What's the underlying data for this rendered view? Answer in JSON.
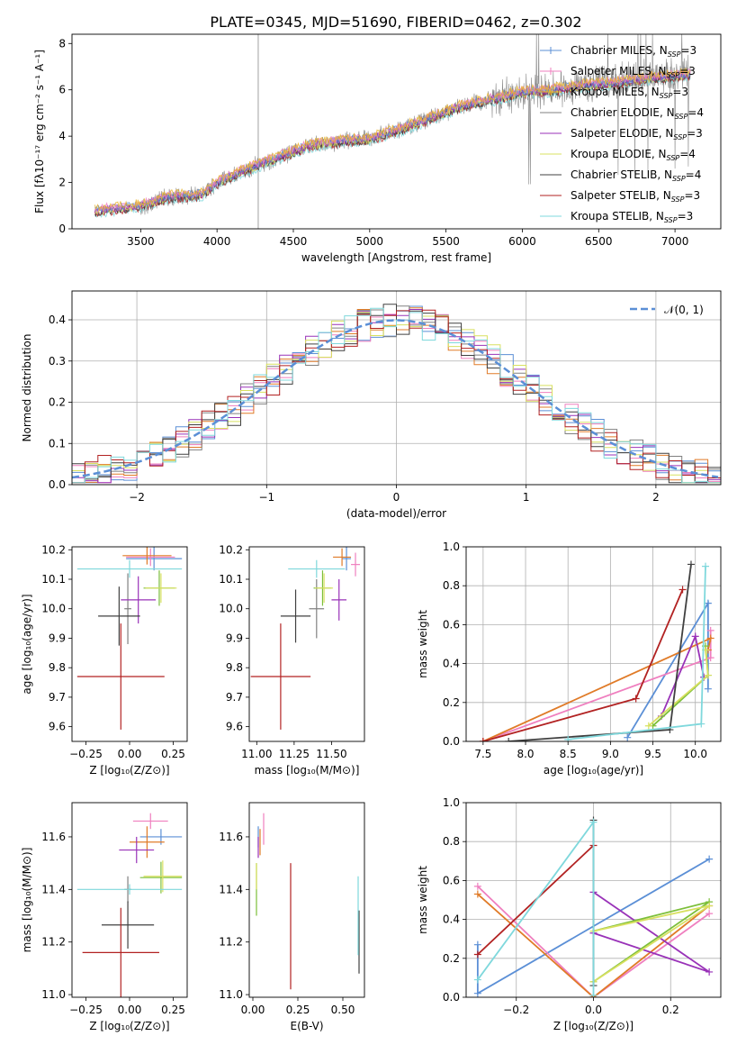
{
  "figure": {
    "title": "PLATE=0345, MJD=51690, FIBERID=0462, z=0.302"
  },
  "palette": {
    "Chabrier MILES": "#5b8fd6",
    "Salpeter MILES": "#ef7fbf",
    "Kroupa MILES": "#e8b12a",
    "Chabrier ELODIE": "#808080",
    "Salpeter ELODIE": "#9932b8",
    "Kroupa ELODIE": "#d8e060",
    "Chabrier STELIB": "#404040",
    "Salpeter STELIB": "#b22222",
    "Kroupa STELIB": "#7fd8dc",
    "orange": "#e07b28",
    "green": "#7cbf3a",
    "gauss": "#5b8fd6"
  },
  "chart_data": [
    {
      "id": "spectrum",
      "type": "line",
      "title": "PLATE=0345, MJD=51690, FIBERID=0462, z=0.302",
      "xlabel": "wavelength [Angstrom, rest frame]",
      "ylabel": "Flux [fλ10⁻¹⁷ erg cm⁻² s⁻¹ A⁻¹]",
      "xlim": [
        3050,
        7300
      ],
      "ylim": [
        0,
        8.4
      ],
      "xticks": [
        3500,
        4000,
        4500,
        5000,
        5500,
        6000,
        6500,
        7000
      ],
      "yticks": [
        0,
        2,
        4,
        6,
        8
      ],
      "grid": false,
      "legend_placement": "right",
      "data": {
        "wavelength_range": [
          3200,
          7100
        ],
        "continuum": [
          [
            3200,
            0.8
          ],
          [
            3500,
            1.0
          ],
          [
            3700,
            1.4
          ],
          [
            3900,
            1.5
          ],
          [
            4000,
            2.0
          ],
          [
            4200,
            2.6
          ],
          [
            4400,
            3.1
          ],
          [
            4600,
            3.6
          ],
          [
            4800,
            3.8
          ],
          [
            5000,
            3.9
          ],
          [
            5200,
            4.3
          ],
          [
            5400,
            4.8
          ],
          [
            5600,
            5.3
          ],
          [
            5800,
            5.6
          ],
          [
            6000,
            5.9
          ],
          [
            6200,
            6.0
          ],
          [
            6400,
            6.2
          ],
          [
            6600,
            6.3
          ],
          [
            6800,
            6.5
          ],
          [
            7000,
            6.6
          ],
          [
            7100,
            6.7
          ]
        ]
      },
      "legend": [
        {
          "label": "Chabrier MILES, N",
          "sub": "SSP",
          "tail": "=3",
          "style": "Chabrier MILES",
          "marker": "+"
        },
        {
          "label": "Salpeter MILES, N",
          "sub": "SSP",
          "tail": "=3",
          "style": "Salpeter MILES",
          "marker": "+"
        },
        {
          "label": "Kroupa MILES, N",
          "sub": "SSP",
          "tail": "=3",
          "style": "Kroupa MILES",
          "marker": "+"
        },
        {
          "label": "Chabrier ELODIE, N",
          "sub": "SSP",
          "tail": "=4",
          "style": "Chabrier ELODIE",
          "marker": ""
        },
        {
          "label": "Salpeter ELODIE, N",
          "sub": "SSP",
          "tail": "=3",
          "style": "Salpeter ELODIE",
          "marker": ""
        },
        {
          "label": "Kroupa ELODIE, N",
          "sub": "SSP",
          "tail": "=4",
          "style": "Kroupa ELODIE",
          "marker": ""
        },
        {
          "label": "Chabrier STELIB, N",
          "sub": "SSP",
          "tail": "=4",
          "style": "Chabrier STELIB",
          "marker": ""
        },
        {
          "label": "Salpeter STELIB, N",
          "sub": "SSP",
          "tail": "=3",
          "style": "Salpeter STELIB",
          "marker": ""
        },
        {
          "label": "Kroupa STELIB, N",
          "sub": "SSP",
          "tail": "=3",
          "style": "Kroupa STELIB",
          "marker": ""
        }
      ]
    },
    {
      "id": "residuals",
      "type": "line",
      "xlabel": "(data-model)/error",
      "ylabel": "Normed distribution",
      "xlim": [
        -2.5,
        2.5
      ],
      "ylim": [
        0,
        0.47
      ],
      "xticks": [
        -2,
        -1,
        0,
        1,
        2
      ],
      "yticks": [
        0.0,
        0.1,
        0.2,
        0.3,
        0.4
      ],
      "grid": true,
      "legend_placement": "top-right",
      "legend": [
        {
          "label": "𝒩(0, 1)",
          "style": "gauss"
        }
      ],
      "gaussian": {
        "mu": 0,
        "sigma": 1
      },
      "histogram": {
        "bin_width": 0.1,
        "series": [
          "Chabrier MILES",
          "Salpeter MILES",
          "orange",
          "Chabrier ELODIE",
          "Salpeter ELODIE",
          "Kroupa ELODIE",
          "Chabrier STELIB",
          "Salpeter STELIB",
          "Kroupa STELIB"
        ],
        "scatter": 0.04
      }
    },
    {
      "id": "z-age",
      "type": "scatter",
      "xlabel": "Z [log₁₀(Z/Z⊙)]",
      "ylabel": "age  [log₁₀(age/yr)]",
      "xlim": [
        -0.33,
        0.33
      ],
      "ylim": [
        9.55,
        10.21
      ],
      "xticks": [
        -0.25,
        0.0,
        0.25
      ],
      "yticks": [
        9.6,
        9.7,
        9.8,
        9.9,
        10.0,
        10.1,
        10.2
      ],
      "points": [
        {
          "series": "Chabrier MILES",
          "x": 0.14,
          "y": 10.17,
          "xerr": 0.16,
          "yerr": 0.04
        },
        {
          "series": "Salpeter MILES",
          "x": 0.12,
          "y": 10.175,
          "xerr": 0.14,
          "yerr": 0.03
        },
        {
          "series": "orange",
          "x": 0.1,
          "y": 10.18,
          "xerr": 0.14,
          "yerr": 0.03
        },
        {
          "series": "Chabrier ELODIE",
          "x": -0.01,
          "y": 10.0,
          "xerr": 0.02,
          "yerr": 0.12
        },
        {
          "series": "Salpeter ELODIE",
          "x": 0.05,
          "y": 10.03,
          "xerr": 0.1,
          "yerr": 0.08
        },
        {
          "series": "green",
          "x": 0.17,
          "y": 10.07,
          "xerr": 0.09,
          "yerr": 0.06
        },
        {
          "series": "Kroupa ELODIE",
          "x": 0.18,
          "y": 10.07,
          "xerr": 0.09,
          "yerr": 0.05
        },
        {
          "series": "Chabrier STELIB",
          "x": -0.06,
          "y": 9.975,
          "xerr": 0.12,
          "yerr": 0.1
        },
        {
          "series": "Salpeter STELIB",
          "x": -0.05,
          "y": 9.77,
          "xerr": 0.25,
          "yerr": 0.18
        },
        {
          "series": "Kroupa STELIB",
          "x": 0.0,
          "y": 10.135,
          "xerr": 0.3,
          "yerr": 0.03
        }
      ]
    },
    {
      "id": "mass-age",
      "type": "scatter",
      "xlabel": "mass [log₁₀(M/M⊙)]",
      "ylabel": "",
      "xlim": [
        10.95,
        11.72
      ],
      "ylim": [
        9.55,
        10.21
      ],
      "xticks": [
        11.0,
        11.25,
        11.5
      ],
      "xticklabels": [
        "11.00",
        "11.25",
        "11.50"
      ],
      "yticks": [
        9.6,
        9.7,
        9.8,
        9.9,
        10.0,
        10.1,
        10.2
      ],
      "points": [
        {
          "series": "Chabrier MILES",
          "x": 11.6,
          "y": 10.17,
          "xerr": 0.03,
          "yerr": 0.04
        },
        {
          "series": "Salpeter MILES",
          "x": 11.66,
          "y": 10.15,
          "xerr": 0.03,
          "yerr": 0.04
        },
        {
          "series": "orange",
          "x": 11.57,
          "y": 10.175,
          "xerr": 0.06,
          "yerr": 0.03
        },
        {
          "series": "Chabrier ELODIE",
          "x": 11.4,
          "y": 10.0,
          "xerr": 0.05,
          "yerr": 0.1
        },
        {
          "series": "Salpeter ELODIE",
          "x": 11.55,
          "y": 10.03,
          "xerr": 0.05,
          "yerr": 0.07
        },
        {
          "series": "green",
          "x": 11.44,
          "y": 10.07,
          "xerr": 0.06,
          "yerr": 0.06
        },
        {
          "series": "Kroupa ELODIE",
          "x": 11.45,
          "y": 10.07,
          "xerr": 0.06,
          "yerr": 0.05
        },
        {
          "series": "Chabrier STELIB",
          "x": 11.26,
          "y": 9.975,
          "xerr": 0.1,
          "yerr": 0.09
        },
        {
          "series": "Salpeter STELIB",
          "x": 11.16,
          "y": 9.77,
          "xerr": 0.2,
          "yerr": 0.18
        },
        {
          "series": "Kroupa STELIB",
          "x": 11.4,
          "y": 10.135,
          "xerr": 0.19,
          "yerr": 0.03
        }
      ]
    },
    {
      "id": "age-weight",
      "type": "line",
      "xlabel": "age  [log₁₀(age/yr)]",
      "ylabel": "mass weight",
      "xlim": [
        7.3,
        10.3
      ],
      "ylim": [
        0,
        1.0
      ],
      "xticks": [
        7.5,
        8.0,
        8.5,
        9.0,
        9.5,
        10.0
      ],
      "yticks": [
        0.0,
        0.2,
        0.4,
        0.6,
        0.8,
        1.0
      ],
      "grid": true,
      "series": [
        {
          "name": "Chabrier MILES",
          "x": [
            9.2,
            10.15,
            10.15
          ],
          "y": [
            0.02,
            0.71,
            0.27
          ]
        },
        {
          "name": "Salpeter MILES",
          "x": [
            7.5,
            10.18,
            10.18
          ],
          "y": [
            0.0,
            0.43,
            0.57
          ]
        },
        {
          "name": "orange",
          "x": [
            7.5,
            10.18,
            10.15
          ],
          "y": [
            0.0,
            0.53,
            0.47
          ]
        },
        {
          "name": "Salpeter ELODIE",
          "x": [
            9.6,
            10.0,
            10.1
          ],
          "y": [
            0.13,
            0.54,
            0.33
          ]
        },
        {
          "name": "green",
          "x": [
            9.5,
            10.15,
            10.12
          ],
          "y": [
            0.08,
            0.34,
            0.49
          ]
        },
        {
          "name": "Kroupa ELODIE",
          "x": [
            9.45,
            10.15,
            10.12
          ],
          "y": [
            0.08,
            0.34,
            0.47
          ]
        },
        {
          "name": "Chabrier STELIB",
          "x": [
            7.8,
            9.7,
            9.95
          ],
          "y": [
            0.0,
            0.06,
            0.91
          ]
        },
        {
          "name": "Salpeter STELIB",
          "x": [
            7.5,
            9.3,
            9.85
          ],
          "y": [
            0.0,
            0.22,
            0.78
          ]
        },
        {
          "name": "Kroupa STELIB",
          "x": [
            8.5,
            10.07,
            10.12
          ],
          "y": [
            0.01,
            0.09,
            0.9
          ]
        }
      ]
    },
    {
      "id": "z-mass",
      "type": "scatter",
      "xlabel": "Z [log₁₀(Z/Z⊙)]",
      "ylabel": "mass [log₁₀(M/M⊙)]",
      "xlim": [
        -0.33,
        0.33
      ],
      "ylim": [
        10.99,
        11.73
      ],
      "xticks": [
        -0.25,
        0.0,
        0.25
      ],
      "yticks": [
        11.0,
        11.2,
        11.4,
        11.6
      ],
      "points": [
        {
          "series": "Chabrier MILES",
          "x": 0.18,
          "y": 11.6,
          "xerr": 0.12,
          "yerr": 0.03
        },
        {
          "series": "Salpeter MILES",
          "x": 0.12,
          "y": 11.66,
          "xerr": 0.1,
          "yerr": 0.03
        },
        {
          "series": "orange",
          "x": 0.1,
          "y": 11.58,
          "xerr": 0.1,
          "yerr": 0.06
        },
        {
          "series": "Chabrier ELODIE",
          "x": -0.01,
          "y": 11.4,
          "xerr": 0.02,
          "yerr": 0.05
        },
        {
          "series": "Salpeter ELODIE",
          "x": 0.04,
          "y": 11.55,
          "xerr": 0.1,
          "yerr": 0.05
        },
        {
          "series": "green",
          "x": 0.18,
          "y": 11.445,
          "xerr": 0.12,
          "yerr": 0.06
        },
        {
          "series": "Kroupa ELODIE",
          "x": 0.19,
          "y": 11.45,
          "xerr": 0.11,
          "yerr": 0.06
        },
        {
          "series": "Chabrier STELIB",
          "x": -0.01,
          "y": 11.265,
          "xerr": 0.15,
          "yerr": 0.09
        },
        {
          "series": "Salpeter STELIB",
          "x": -0.05,
          "y": 11.16,
          "xerr": 0.22,
          "yerr": 0.17
        },
        {
          "series": "Kroupa STELIB",
          "x": 0.0,
          "y": 11.4,
          "xerr": 0.3,
          "yerr": 0.02
        }
      ]
    },
    {
      "id": "ebv-mass",
      "type": "scatter",
      "xlabel": "E(B-V)",
      "ylabel": "",
      "xlim": [
        -0.02,
        0.62
      ],
      "ylim": [
        10.99,
        11.73
      ],
      "xticks": [
        0.0,
        0.25,
        0.5
      ],
      "xticklabels": [
        "0.00",
        "0.25",
        "0.50"
      ],
      "yticks": [
        11.0,
        11.2,
        11.4,
        11.6
      ],
      "points": [
        {
          "series": "Chabrier MILES",
          "x": 0.03,
          "y": 11.6,
          "xerr": 0.002,
          "yerr": 0.04
        },
        {
          "series": "Salpeter MILES",
          "x": 0.06,
          "y": 11.63,
          "xerr": 0.002,
          "yerr": 0.06
        },
        {
          "series": "orange",
          "x": 0.04,
          "y": 11.58,
          "xerr": 0.002,
          "yerr": 0.05
        },
        {
          "series": "Salpeter ELODIE",
          "x": 0.03,
          "y": 11.56,
          "xerr": 0.002,
          "yerr": 0.04
        },
        {
          "series": "green",
          "x": 0.02,
          "y": 11.4,
          "xerr": 0.002,
          "yerr": 0.1
        },
        {
          "series": "Kroupa ELODIE",
          "x": 0.02,
          "y": 11.45,
          "xerr": 0.002,
          "yerr": 0.05
        },
        {
          "series": "Chabrier STELIB",
          "x": 0.59,
          "y": 11.2,
          "xerr": 0.002,
          "yerr": 0.12
        },
        {
          "series": "Salpeter STELIB",
          "x": 0.21,
          "y": 11.26,
          "xerr": 0.002,
          "yerr": 0.24
        },
        {
          "series": "Kroupa STELIB",
          "x": 0.585,
          "y": 11.3,
          "xerr": 0.002,
          "yerr": 0.15
        }
      ]
    },
    {
      "id": "z-weight",
      "type": "line",
      "xlabel": "Z [log₁₀(Z/Z⊙)]",
      "ylabel": "mass weight",
      "xlim": [
        -0.33,
        0.33
      ],
      "ylim": [
        0,
        1.0
      ],
      "xticks": [
        -0.2,
        0.0,
        0.2
      ],
      "yticks": [
        0.0,
        0.2,
        0.4,
        0.6,
        0.8,
        1.0
      ],
      "grid": true,
      "series": [
        {
          "name": "Chabrier MILES",
          "x": [
            -0.3,
            -0.3,
            0.3
          ],
          "y": [
            0.27,
            0.02,
            0.71
          ]
        },
        {
          "name": "Salpeter MILES",
          "x": [
            -0.3,
            0.0,
            0.3
          ],
          "y": [
            0.57,
            0.0,
            0.43
          ]
        },
        {
          "name": "orange",
          "x": [
            -0.3,
            0.0,
            0.3
          ],
          "y": [
            0.53,
            0.0,
            0.47
          ]
        },
        {
          "name": "Salpeter ELODIE",
          "x": [
            0.0,
            0.3,
            0.0
          ],
          "y": [
            0.33,
            0.13,
            0.54
          ]
        },
        {
          "name": "green",
          "x": [
            0.0,
            0.3,
            0.0
          ],
          "y": [
            0.34,
            0.49,
            0.08
          ]
        },
        {
          "name": "Kroupa ELODIE",
          "x": [
            0.0,
            0.3,
            0.0
          ],
          "y": [
            0.34,
            0.47,
            0.08
          ]
        },
        {
          "name": "Chabrier STELIB",
          "x": [
            0.0,
            0.0
          ],
          "y": [
            0.06,
            0.91
          ]
        },
        {
          "name": "Salpeter STELIB",
          "x": [
            -0.3,
            0.0
          ],
          "y": [
            0.22,
            0.78
          ]
        },
        {
          "name": "Kroupa STELIB",
          "x": [
            -0.3,
            0.0,
            0.0
          ],
          "y": [
            0.09,
            0.9,
            0.01
          ]
        }
      ]
    }
  ]
}
